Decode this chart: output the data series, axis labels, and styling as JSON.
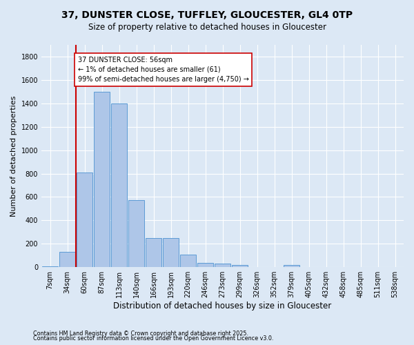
{
  "title": "37, DUNSTER CLOSE, TUFFLEY, GLOUCESTER, GL4 0TP",
  "subtitle": "Size of property relative to detached houses in Gloucester",
  "xlabel": "Distribution of detached houses by size in Gloucester",
  "ylabel": "Number of detached properties",
  "categories": [
    "7sqm",
    "34sqm",
    "60sqm",
    "87sqm",
    "113sqm",
    "140sqm",
    "166sqm",
    "193sqm",
    "220sqm",
    "246sqm",
    "273sqm",
    "299sqm",
    "326sqm",
    "352sqm",
    "379sqm",
    "405sqm",
    "432sqm",
    "458sqm",
    "485sqm",
    "511sqm",
    "538sqm"
  ],
  "values": [
    10,
    130,
    810,
    1500,
    1400,
    575,
    250,
    250,
    110,
    35,
    30,
    20,
    0,
    0,
    20,
    0,
    0,
    0,
    0,
    0,
    0
  ],
  "bar_color": "#aec6e8",
  "bar_edge_color": "#5b9bd5",
  "vline_color": "#cc0000",
  "annotation_text": "37 DUNSTER CLOSE: 56sqm\n← 1% of detached houses are smaller (61)\n99% of semi-detached houses are larger (4,750) →",
  "annotation_box_color": "#ffffff",
  "annotation_box_edge": "#cc0000",
  "bg_color": "#dce8f5",
  "grid_color": "#ffffff",
  "ylim": [
    0,
    1900
  ],
  "yticks": [
    0,
    200,
    400,
    600,
    800,
    1000,
    1200,
    1400,
    1600,
    1800
  ],
  "footer_line1": "Contains HM Land Registry data © Crown copyright and database right 2025.",
  "footer_line2": "Contains public sector information licensed under the Open Government Licence v3.0.",
  "title_fontsize": 10,
  "subtitle_fontsize": 8.5,
  "ylabel_fontsize": 8,
  "xlabel_fontsize": 8.5,
  "tick_fontsize": 7,
  "annotation_fontsize": 7,
  "footer_fontsize": 5.8
}
